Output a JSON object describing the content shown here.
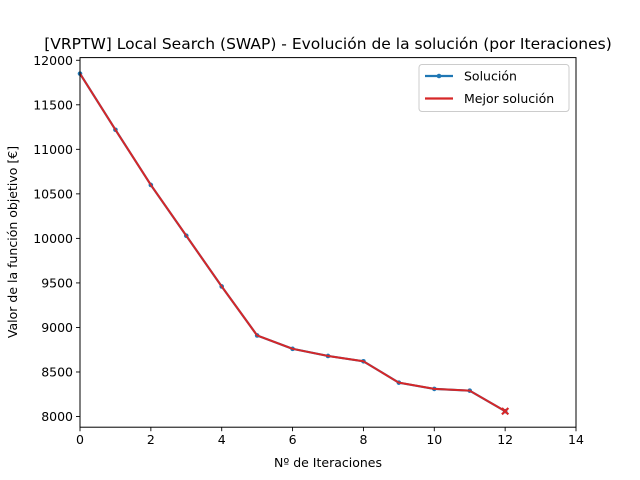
{
  "chart_data": {
    "type": "line",
    "title": "[VRPTW] Local Search (SWAP) - Evolución de la solución (por Iteraciones)",
    "xlabel": "Nº de Iteraciones",
    "ylabel": "Valor de la función objetivo [€]",
    "xlim": [
      0,
      14
    ],
    "ylim": [
      7880,
      12030
    ],
    "xticks": [
      "0",
      "2",
      "4",
      "6",
      "8",
      "10",
      "12",
      "14"
    ],
    "yticks": [
      "8000",
      "8500",
      "9000",
      "9500",
      "10000",
      "10500",
      "11000",
      "11500",
      "12000"
    ],
    "grid": false,
    "legend_position": "top-right",
    "x": [
      0,
      1,
      2,
      3,
      4,
      5,
      6,
      7,
      8,
      9,
      10,
      11,
      12
    ],
    "series": [
      {
        "name": "Solución",
        "color": "#1f77b4",
        "marker": "dot",
        "values": [
          11850,
          11220,
          10600,
          10030,
          9460,
          8910,
          8760,
          8680,
          8620,
          8380,
          8310,
          8290,
          8060
        ]
      },
      {
        "name": "Mejor solución",
        "color": "#d62728",
        "values": [
          11850,
          11220,
          10600,
          10030,
          9460,
          8910,
          8760,
          8680,
          8620,
          8380,
          8310,
          8290,
          8060
        ]
      }
    ],
    "final_marker": {
      "symbol": "x",
      "color": "#d62728",
      "x": 12,
      "y": 8060
    }
  }
}
